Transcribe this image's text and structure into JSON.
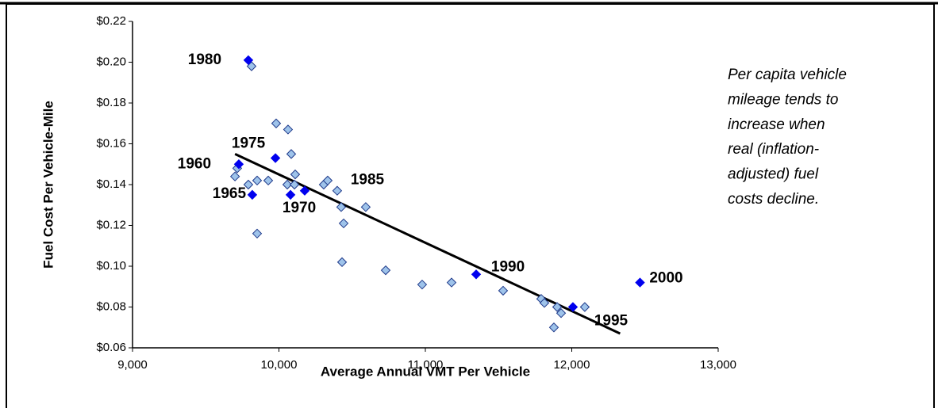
{
  "chart_data": {
    "type": "scatter",
    "x_label": "Average Annual VMT Per Vehicle",
    "y_label": "Fuel Cost Per Vehicle-Mile",
    "xlim": [
      9000,
      13000
    ],
    "ylim": [
      0.06,
      0.22
    ],
    "xticks": [
      {
        "value": 9000,
        "label": "9,000"
      },
      {
        "value": 10000,
        "label": "10,000"
      },
      {
        "value": 11000,
        "label": "11,000"
      },
      {
        "value": 12000,
        "label": "12,000"
      },
      {
        "value": 13000,
        "label": "13,000"
      }
    ],
    "yticks": [
      {
        "value": 0.06,
        "label": "$0.06"
      },
      {
        "value": 0.08,
        "label": "$0.08"
      },
      {
        "value": 0.1,
        "label": "$0.10"
      },
      {
        "value": 0.12,
        "label": "$0.12"
      },
      {
        "value": 0.14,
        "label": "$0.14"
      },
      {
        "value": 0.16,
        "label": "$0.16"
      },
      {
        "value": 0.18,
        "label": "$0.18"
      },
      {
        "value": 0.2,
        "label": "$0.20"
      },
      {
        "value": 0.22,
        "label": "$0.22"
      }
    ],
    "series": [
      {
        "color": "#9ec3ea",
        "x": [
          9813,
          9981,
          10062,
          10084,
          10111,
          9927,
          9851,
          9700,
          9715,
          9791,
          9851,
          10057,
          10106,
          10306,
          10333,
          10398,
          10425,
          10442,
          10593,
          10431,
          10729,
          10978,
          11179,
          11531,
          11791,
          11813,
          11900,
          11927,
          11878,
          12089
        ],
        "values": [
          0.198,
          0.17,
          0.167,
          0.155,
          0.145,
          0.142,
          0.142,
          0.144,
          0.148,
          0.14,
          0.116,
          0.14,
          0.14,
          0.14,
          0.142,
          0.137,
          0.129,
          0.121,
          0.129,
          0.102,
          0.098,
          0.091,
          0.092,
          0.088,
          0.084,
          0.082,
          0.08,
          0.077,
          0.07,
          0.08
        ]
      },
      {
        "color": "#0000ee",
        "x": [
          9726,
          9818,
          10079,
          9976,
          9791,
          10176,
          11347,
          12008,
          12466
        ],
        "values": [
          0.15,
          0.135,
          0.135,
          0.153,
          0.201,
          0.137,
          0.096,
          0.08,
          0.092
        ],
        "point_labels": [
          "1960",
          "1965",
          "1970",
          "1975",
          "1980",
          "1985",
          "1990",
          "1995",
          "2000"
        ]
      }
    ],
    "trendline": {
      "x": [
        9700,
        12330
      ],
      "values": [
        0.155,
        0.067
      ],
      "color": "#000000"
    },
    "note": [
      "Per capita vehicle",
      "mileage tends to",
      "increase when",
      "real (inflation-",
      "adjusted) fuel",
      "costs decline."
    ]
  }
}
